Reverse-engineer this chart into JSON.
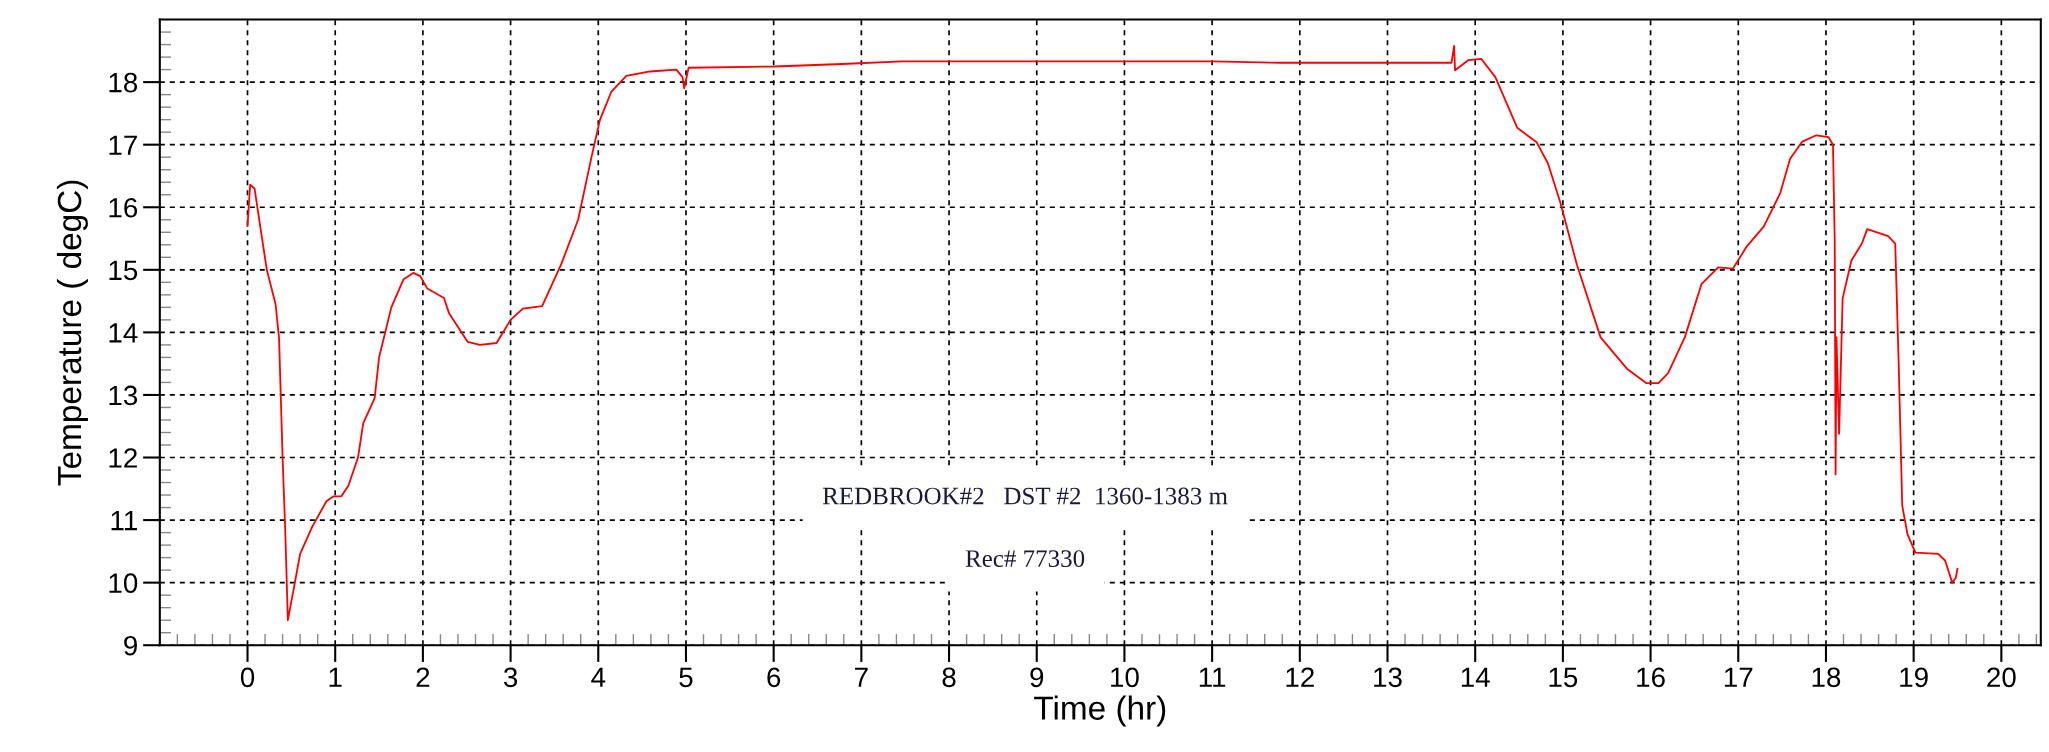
{
  "chart_data": {
    "type": "line",
    "xlabel": "Time (hr)",
    "ylabel": "Temperature ( degC)",
    "annotations": [
      "REDBROOK#2   DST #2  1360-1383 m",
      "Rec# 77330"
    ],
    "xlim": [
      -1,
      20.45
    ],
    "xticks": [
      0,
      1,
      2,
      3,
      4,
      5,
      6,
      7,
      8,
      9,
      10,
      11,
      12,
      13,
      14,
      15,
      16,
      17,
      18,
      19,
      20
    ],
    "ylim": [
      9,
      19
    ],
    "yticks": [
      9,
      10,
      11,
      12,
      13,
      14,
      15,
      16,
      17,
      18
    ],
    "grid": true,
    "marker": "none",
    "line_style": "solid",
    "series": [
      {
        "color": "#ff0000",
        "x": [
          0,
          0.03,
          0.08,
          0.22,
          0.32,
          0.36,
          0.4,
          0.43,
          0.46,
          0.54,
          0.6,
          0.74,
          0.9,
          0.98,
          1.07,
          1.15,
          1.26,
          1.32,
          1.45,
          1.5,
          1.64,
          1.78,
          1.89,
          1.97,
          2.05,
          2.24,
          2.3,
          2.51,
          2.65,
          2.84,
          3.0,
          3.14,
          3.36,
          3.58,
          3.77,
          3.93,
          4.02,
          4.15,
          4.32,
          4.59,
          4.89,
          4.96,
          4.98,
          5.03,
          6.01,
          6.78,
          7.47,
          11.0,
          11.78,
          13.73,
          13.76,
          13.77,
          13.92,
          14.07,
          14.23,
          14.48,
          14.7,
          14.83,
          14.97,
          15.16,
          15.43,
          15.73,
          15.95,
          16.09,
          16.2,
          16.39,
          16.58,
          16.77,
          16.94,
          17.1,
          17.29,
          17.48,
          17.59,
          17.73,
          17.89,
          18.03,
          18.08,
          18.1,
          18.11,
          18.12,
          18.15,
          18.19,
          18.29,
          18.41,
          18.47,
          18.71,
          18.79,
          18.83,
          18.87,
          18.93,
          19.02,
          19.28,
          19.36,
          19.44,
          19.48,
          19.5
        ],
        "values": [
          15.7,
          16.36,
          16.3,
          15.0,
          14.45,
          13.9,
          12.0,
          10.85,
          9.4,
          10.0,
          10.46,
          10.9,
          11.3,
          11.38,
          11.38,
          11.55,
          12.0,
          12.55,
          12.95,
          13.6,
          14.4,
          14.85,
          14.95,
          14.9,
          14.7,
          14.55,
          14.3,
          13.85,
          13.8,
          13.83,
          14.2,
          14.38,
          14.42,
          15.1,
          15.8,
          16.85,
          17.4,
          17.85,
          18.1,
          18.17,
          18.2,
          18.08,
          17.9,
          18.23,
          18.25,
          18.29,
          18.33,
          18.33,
          18.31,
          18.31,
          18.58,
          18.19,
          18.35,
          18.37,
          18.08,
          17.27,
          17.04,
          16.7,
          16.08,
          15.08,
          13.92,
          13.42,
          13.19,
          13.19,
          13.35,
          13.92,
          14.77,
          15.04,
          15.02,
          15.38,
          15.69,
          16.23,
          16.77,
          17.05,
          17.15,
          17.12,
          17.0,
          15.46,
          11.73,
          13.92,
          12.38,
          14.54,
          15.15,
          15.42,
          15.65,
          15.54,
          15.42,
          13.46,
          11.23,
          10.77,
          10.48,
          10.46,
          10.35,
          10.0,
          10.08,
          10.22
        ]
      }
    ]
  }
}
